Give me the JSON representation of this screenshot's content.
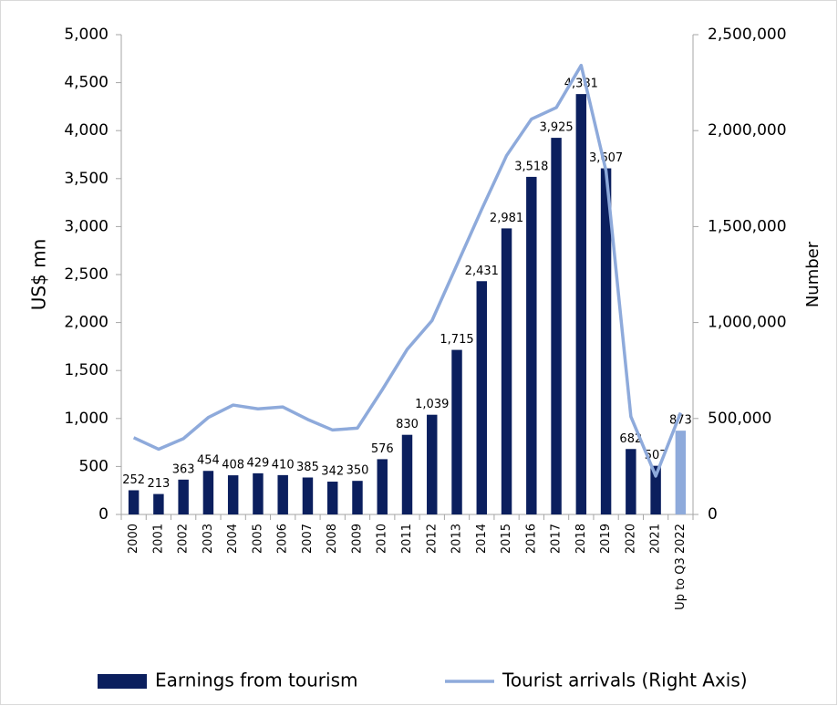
{
  "chart_data": {
    "type": "bar-line",
    "categories": [
      "2000",
      "2001",
      "2002",
      "2003",
      "2004",
      "2005",
      "2006",
      "2007",
      "2008",
      "2009",
      "2010",
      "2011",
      "2012",
      "2013",
      "2014",
      "2015",
      "2016",
      "2017",
      "2018",
      "2019",
      "2020",
      "2021",
      "Up to Q3 2022"
    ],
    "series": [
      {
        "name": "Earnings from tourism",
        "type": "bar",
        "color": "#0b1f5e",
        "colors": [
          "#0b1f5e",
          "#0b1f5e",
          "#0b1f5e",
          "#0b1f5e",
          "#0b1f5e",
          "#0b1f5e",
          "#0b1f5e",
          "#0b1f5e",
          "#0b1f5e",
          "#0b1f5e",
          "#0b1f5e",
          "#0b1f5e",
          "#0b1f5e",
          "#0b1f5e",
          "#0b1f5e",
          "#0b1f5e",
          "#0b1f5e",
          "#0b1f5e",
          "#0b1f5e",
          "#0b1f5e",
          "#0b1f5e",
          "#0b1f5e",
          "#8eaadb"
        ],
        "values": [
          252,
          213,
          363,
          454,
          408,
          429,
          410,
          385,
          342,
          350,
          576,
          830,
          1039,
          1715,
          2431,
          2981,
          3518,
          3925,
          4381,
          3607,
          682,
          507,
          873
        ],
        "value_labels": [
          "252",
          "213",
          "363",
          "454",
          "408",
          "429",
          "410",
          "385",
          "342",
          "350",
          "576",
          "830",
          "1,039",
          "1,715",
          "2,431",
          "2,981",
          "3,518",
          "3,925",
          "4,381",
          "3,607",
          "682",
          "507",
          "873"
        ]
      },
      {
        "name": "Tourist arrivals (Right Axis)",
        "type": "line",
        "axis": "y2",
        "color": "#8eaadb",
        "values": [
          400000,
          340000,
          395000,
          505000,
          570000,
          550000,
          560000,
          495000,
          440000,
          450000,
          650000,
          860000,
          1010000,
          1300000,
          1590000,
          1870000,
          2060000,
          2120000,
          2340000,
          1790000,
          510000,
          200000,
          530000
        ]
      }
    ],
    "ylabel": "US$ mn",
    "y2label": "Number",
    "ylim": [
      0,
      5000
    ],
    "yticks": [
      0,
      500,
      {
        "value": 1000,
        "label": "1,000"
      },
      {
        "value": 1500,
        "label": "1,500"
      },
      {
        "value": 2000,
        "label": "2,000"
      },
      {
        "value": 2500,
        "label": "2,500"
      },
      {
        "value": 3000,
        "label": "3,000"
      },
      {
        "value": 3500,
        "label": "3,500"
      },
      {
        "value": 4000,
        "label": "4,000"
      },
      {
        "value": 4500,
        "label": "4,500"
      },
      {
        "value": 5000,
        "label": "5,000"
      }
    ],
    "y2lim": [
      0,
      2500000
    ],
    "y2ticks": [
      0,
      {
        "value": 500000,
        "label": "500,000"
      },
      {
        "value": 1000000,
        "label": "1,000,000"
      },
      {
        "value": 1500000,
        "label": "1,500,000"
      },
      {
        "value": 2000000,
        "label": "2,000,000"
      },
      {
        "value": 2500000,
        "label": "2,500,000"
      }
    ],
    "legend": "bottom"
  }
}
